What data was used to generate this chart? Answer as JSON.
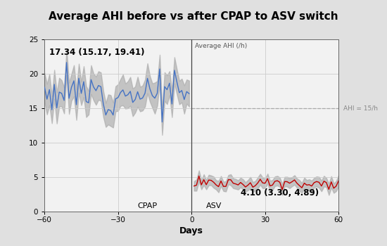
{
  "title": "Average AHI before vs after CPAP to ASV switch",
  "xlabel": "Days",
  "ylim": [
    0,
    25
  ],
  "yticks": [
    0,
    5,
    10,
    15,
    20,
    25
  ],
  "xlim": [
    -60,
    60
  ],
  "xticks": [
    -60,
    -30,
    0,
    30,
    60
  ],
  "bg_color": "#e0e0e0",
  "plot_bg_color": "#f2f2f2",
  "title_bg_color": "#cccccc",
  "cpap_mean": 17.34,
  "cpap_ci_low": 15.17,
  "cpap_ci_high": 19.41,
  "asv_mean": 4.1,
  "asv_ci_low": 3.3,
  "asv_ci_high": 4.89,
  "ahi_threshold": 15,
  "label_avg_ahi": "Average AHI (/h)",
  "label_ahi_thresh": "AHI = 15/h",
  "label_cpap": "CPAP",
  "label_asv": "ASV",
  "cpap_text": "17.34 (15.17, 19.41)",
  "asv_text": "4.10 (3.30, 4.89)",
  "line_color_cpap": "#4472c4",
  "line_color_asv": "#c00000",
  "ci_color": "#aaaaaa",
  "vline_color": "#444444",
  "grid_color": "#cccccc",
  "dashed_color": "#aaaaaa",
  "seed": 12
}
